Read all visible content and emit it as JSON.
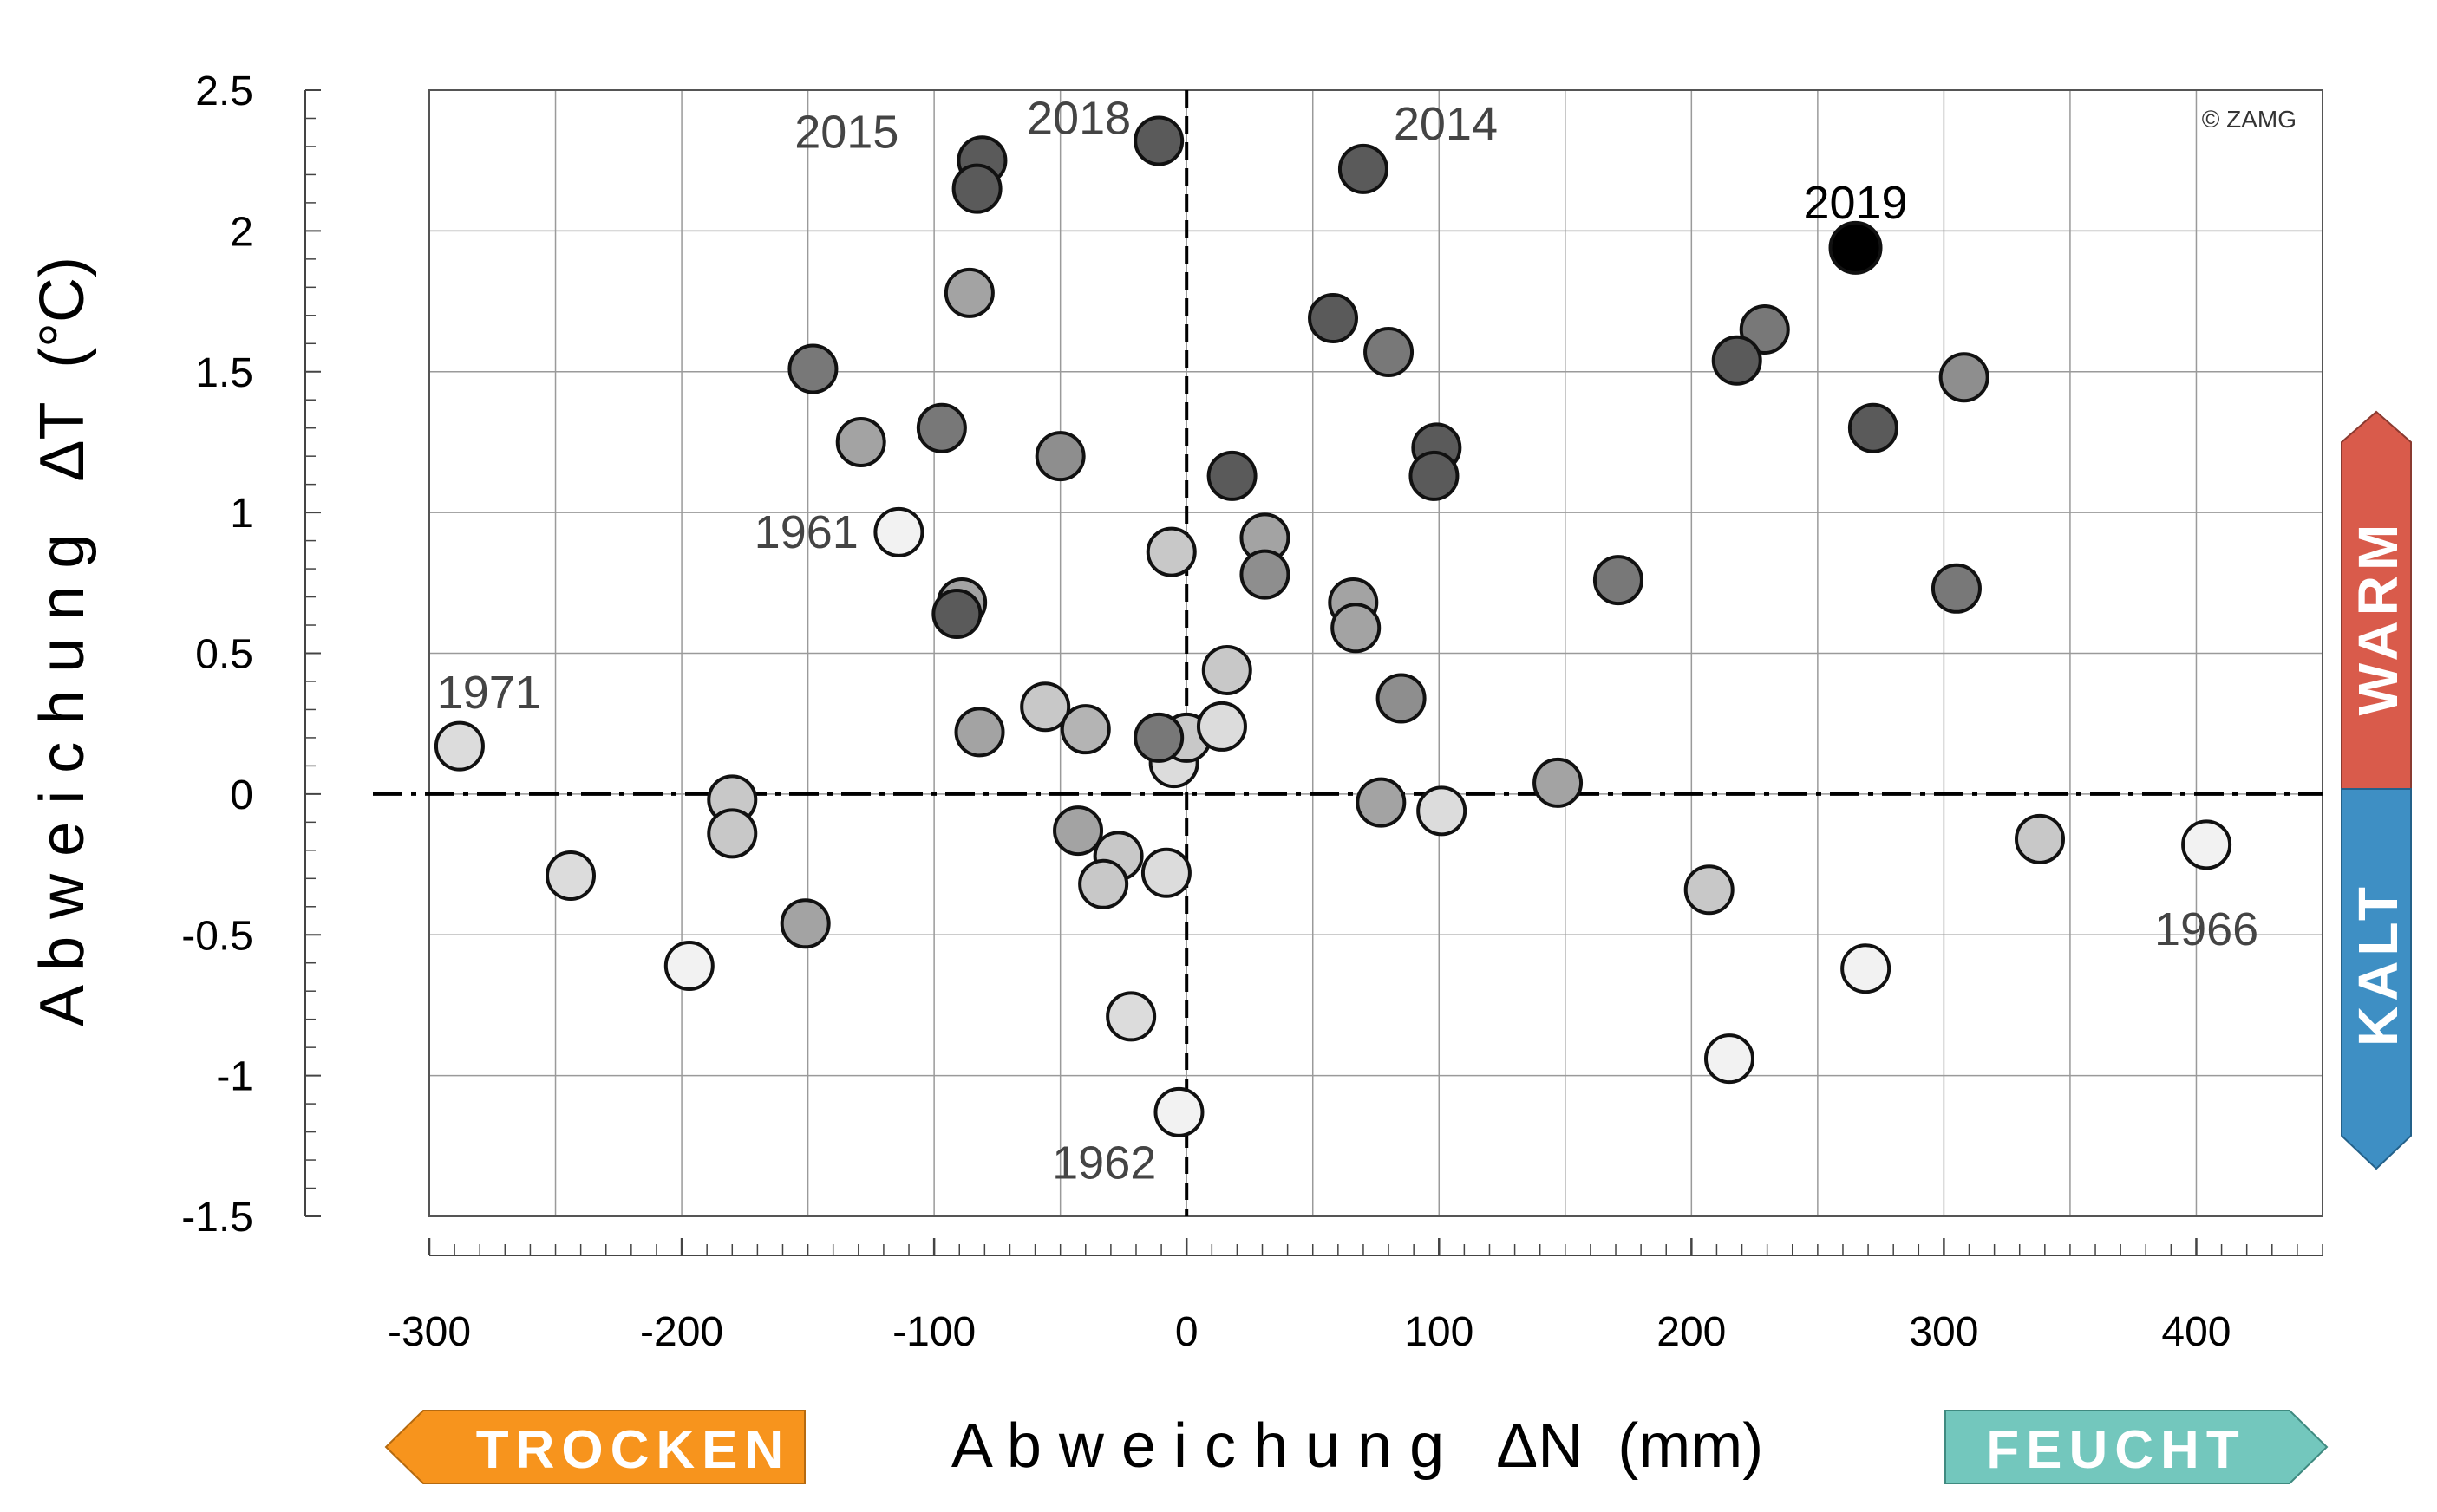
{
  "chart_data": {
    "type": "scatter",
    "title": "",
    "xlabel": "A b w e i c h u n g   ΔN  (mm)",
    "ylabel": "A b w e i c h u n g   ΔT  (°C)",
    "xlim": [
      -300,
      450
    ],
    "ylim": [
      -1.5,
      2.5
    ],
    "x_ticks": [
      -300,
      -200,
      -100,
      0,
      100,
      200,
      300,
      400
    ],
    "y_ticks": [
      -1.5,
      -1,
      -0.5,
      0,
      0.5,
      1,
      1.5,
      2,
      2.5
    ],
    "x_tick_labels": [
      "-300",
      "-200",
      "-100",
      "0",
      "100",
      "200",
      "300",
      "400"
    ],
    "y_tick_labels": [
      "-1.5",
      "-1",
      "-0.5",
      "0",
      "0.5",
      "1",
      "1.5",
      "2",
      "2.5"
    ],
    "grid": true,
    "copyright": "© ZAMG",
    "colors": {
      "warm": "#d95b4b",
      "kalt": "#3e8fc4",
      "trocken": "#f7941d",
      "feucht": "#73c7bd",
      "highlight": "#000000"
    },
    "side_labels": {
      "warm": "WARM",
      "kalt": "KALT",
      "trocken": "TROCKEN",
      "feucht": "FEUCHT"
    },
    "points": [
      {
        "x": -81,
        "y": 2.25,
        "fill": "#5a5a5a"
      },
      {
        "x": -83,
        "y": 2.15,
        "fill": "#5a5a5a"
      },
      {
        "x": -11,
        "y": 2.32,
        "fill": "#5a5a5a"
      },
      {
        "x": 70,
        "y": 2.22,
        "fill": "#5a5a5a"
      },
      {
        "x": 265,
        "y": 1.94,
        "fill": "#000000",
        "r": 29
      },
      {
        "x": -86,
        "y": 1.78,
        "fill": "#a3a3a3"
      },
      {
        "x": -148,
        "y": 1.51,
        "fill": "#787878"
      },
      {
        "x": -129,
        "y": 1.25,
        "fill": "#a3a3a3"
      },
      {
        "x": -97,
        "y": 1.3,
        "fill": "#787878"
      },
      {
        "x": -50,
        "y": 1.2,
        "fill": "#8e8e8e"
      },
      {
        "x": 58,
        "y": 1.69,
        "fill": "#5a5a5a"
      },
      {
        "x": 80,
        "y": 1.57,
        "fill": "#787878"
      },
      {
        "x": 229,
        "y": 1.65,
        "fill": "#787878"
      },
      {
        "x": 218,
        "y": 1.54,
        "fill": "#5a5a5a"
      },
      {
        "x": 308,
        "y": 1.48,
        "fill": "#8e8e8e"
      },
      {
        "x": 272,
        "y": 1.3,
        "fill": "#5a5a5a"
      },
      {
        "x": 99,
        "y": 1.23,
        "fill": "#5a5a5a"
      },
      {
        "x": 98,
        "y": 1.13,
        "fill": "#5a5a5a"
      },
      {
        "x": 18,
        "y": 1.13,
        "fill": "#5a5a5a"
      },
      {
        "x": -114,
        "y": 0.93,
        "fill": "#f2f2f2"
      },
      {
        "x": -6,
        "y": 0.86,
        "fill": "#c8c8c8"
      },
      {
        "x": 31,
        "y": 0.91,
        "fill": "#a3a3a3"
      },
      {
        "x": 31,
        "y": 0.78,
        "fill": "#8e8e8e"
      },
      {
        "x": 66,
        "y": 0.68,
        "fill": "#a3a3a3"
      },
      {
        "x": 67,
        "y": 0.59,
        "fill": "#a3a3a3"
      },
      {
        "x": -89,
        "y": 0.68,
        "fill": "#a3a3a3"
      },
      {
        "x": -91,
        "y": 0.64,
        "fill": "#5a5a5a"
      },
      {
        "x": 171,
        "y": 0.76,
        "fill": "#787878"
      },
      {
        "x": 305,
        "y": 0.73,
        "fill": "#787878"
      },
      {
        "x": 16,
        "y": 0.44,
        "fill": "#c8c8c8"
      },
      {
        "x": 85,
        "y": 0.34,
        "fill": "#8e8e8e"
      },
      {
        "x": -288,
        "y": 0.17,
        "fill": "#dcdcdc"
      },
      {
        "x": -56,
        "y": 0.31,
        "fill": "#c8c8c8"
      },
      {
        "x": -40,
        "y": 0.23,
        "fill": "#b4b4b4"
      },
      {
        "x": -82,
        "y": 0.22,
        "fill": "#a3a3a3"
      },
      {
        "x": -5,
        "y": 0.11,
        "fill": "#dcdcdc"
      },
      {
        "x": 0,
        "y": 0.2,
        "fill": "#c8c8c8"
      },
      {
        "x": -11,
        "y": 0.2,
        "fill": "#787878"
      },
      {
        "x": 14,
        "y": 0.24,
        "fill": "#dcdcdc"
      },
      {
        "x": 147,
        "y": 0.04,
        "fill": "#a3a3a3"
      },
      {
        "x": -180,
        "y": -0.02,
        "fill": "#c8c8c8"
      },
      {
        "x": -180,
        "y": -0.14,
        "fill": "#c8c8c8"
      },
      {
        "x": 77,
        "y": -0.03,
        "fill": "#a3a3a3"
      },
      {
        "x": 101,
        "y": -0.06,
        "fill": "#dcdcdc"
      },
      {
        "x": -43,
        "y": -0.13,
        "fill": "#a3a3a3"
      },
      {
        "x": -27,
        "y": -0.22,
        "fill": "#c8c8c8"
      },
      {
        "x": -33,
        "y": -0.32,
        "fill": "#c8c8c8"
      },
      {
        "x": -8,
        "y": -0.28,
        "fill": "#dcdcdc"
      },
      {
        "x": -244,
        "y": -0.29,
        "fill": "#dcdcdc"
      },
      {
        "x": -151,
        "y": -0.46,
        "fill": "#a3a3a3"
      },
      {
        "x": -197,
        "y": -0.61,
        "fill": "#f2f2f2"
      },
      {
        "x": -22,
        "y": -0.79,
        "fill": "#dcdcdc"
      },
      {
        "x": -3,
        "y": -1.13,
        "fill": "#f2f2f2"
      },
      {
        "x": 207,
        "y": -0.34,
        "fill": "#c8c8c8"
      },
      {
        "x": 269,
        "y": -0.62,
        "fill": "#f2f2f2"
      },
      {
        "x": 215,
        "y": -0.94,
        "fill": "#f2f2f2"
      },
      {
        "x": 338,
        "y": -0.16,
        "fill": "#c8c8c8"
      },
      {
        "x": 404,
        "y": -0.18,
        "fill": "#f2f2f2"
      }
    ],
    "annotations": [
      {
        "text": "2015",
        "x": -114,
        "y": 2.35,
        "anchor": "end",
        "bold": false,
        "dark": false
      },
      {
        "text": "2018",
        "x": -22,
        "y": 2.4,
        "anchor": "end",
        "bold": false,
        "dark": false
      },
      {
        "text": "2014",
        "x": 82,
        "y": 2.38,
        "anchor": "start",
        "bold": false,
        "dark": false
      },
      {
        "text": "2019",
        "x": 265,
        "y": 2.1,
        "anchor": "middle",
        "bold": false,
        "dark": true
      },
      {
        "text": "1961",
        "x": -130,
        "y": 0.93,
        "anchor": "end",
        "bold": false,
        "dark": false
      },
      {
        "text": "1971",
        "x": -297,
        "y": 0.36,
        "anchor": "start",
        "bold": false,
        "dark": false
      },
      {
        "text": "1962",
        "x": -12,
        "y": -1.31,
        "anchor": "end",
        "bold": false,
        "dark": false
      },
      {
        "text": "1966",
        "x": 404,
        "y": -0.48,
        "anchor": "middle",
        "bold": false,
        "dark": false
      }
    ]
  }
}
